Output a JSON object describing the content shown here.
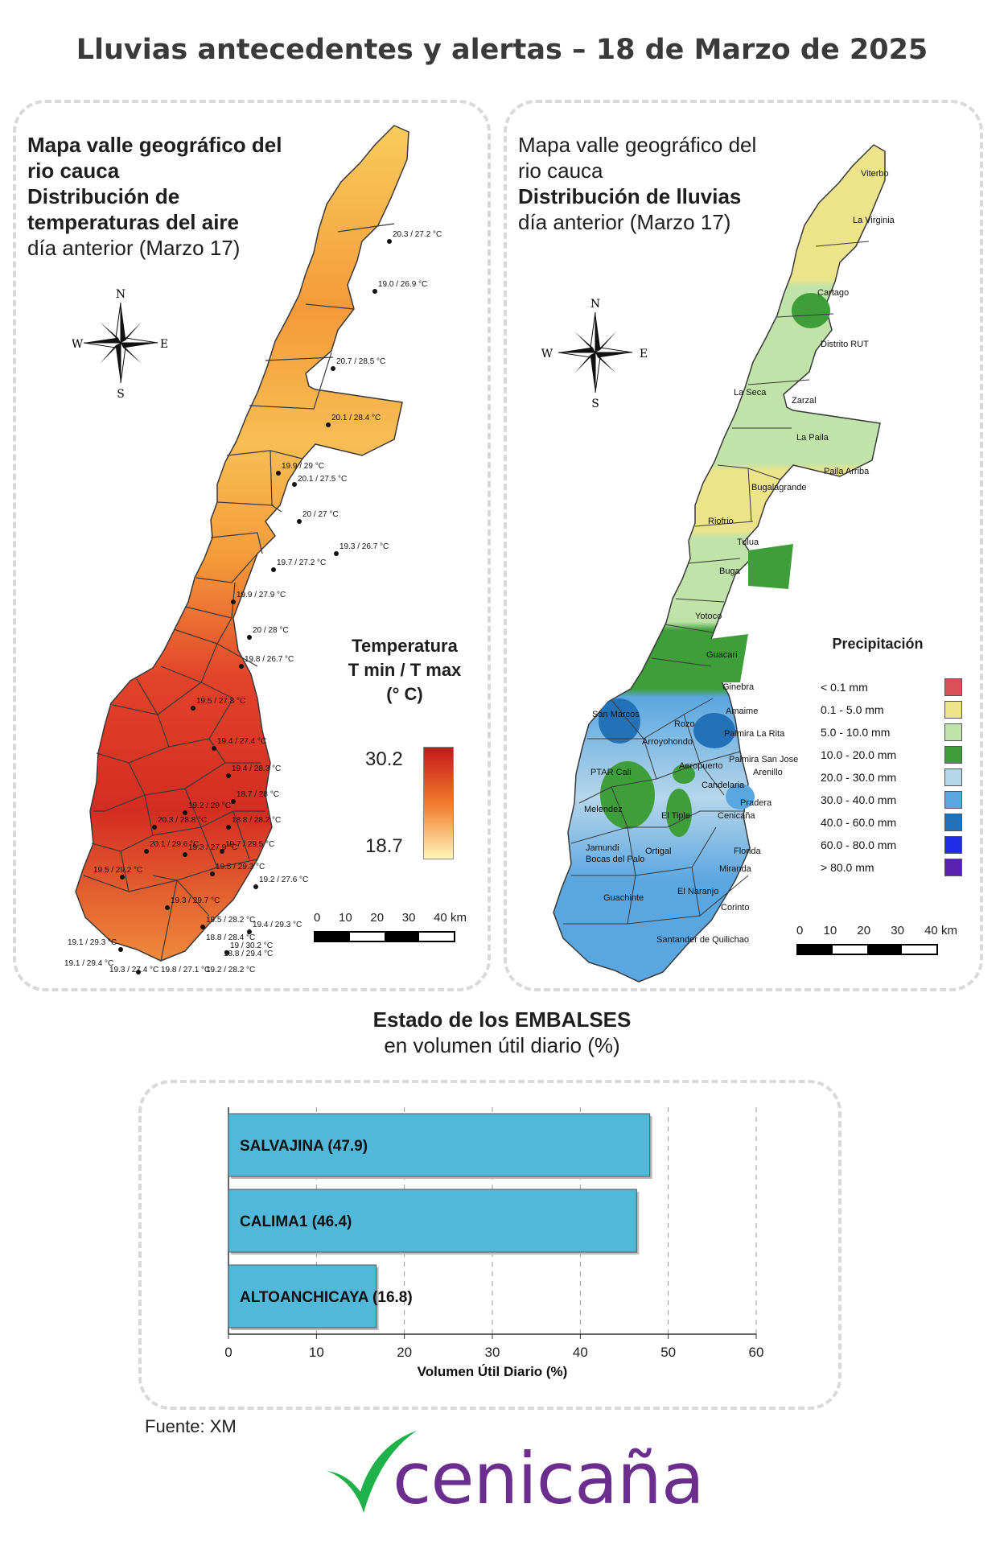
{
  "title": "Lluvias antecedentes y alertas – 18 de Marzo de 2025",
  "temp_map": {
    "heading_line1": "Mapa valle geográfico del",
    "heading_line2": "rio cauca",
    "heading_line3": "Distribución de",
    "heading_line4": "temperaturas del aire",
    "heading_line5": "día anterior (Marzo 17)",
    "legend_title_line1": "Temperatura",
    "legend_title_line2": "T min / T max",
    "legend_title_line3": "(° C)",
    "legend_max": "30.2",
    "legend_min": "18.7",
    "scale_labels": [
      "0",
      "10",
      "20",
      "30",
      "40 km"
    ],
    "stations": [
      "20.3 / 27.2 °C",
      "19.0 / 26.9 °C",
      "20.7 / 28.5 °C",
      "20.1 / 28.4 °C",
      "19.9 / 29 °C",
      "20.1 / 27.5 °C",
      "20 / 27 °C",
      "19.3 / 26.7 °C",
      "19.7 / 27.2 °C",
      "19.9 / 27.9 °C",
      "20 / 28 °C",
      "19.8 / 26.7 °C",
      "19.5 / 27.8 °C",
      "19.4 / 27.4 °C",
      "19.4 / 28.3 °C",
      "18.7 / 28 °C",
      "19.2 / 29 °C",
      "20.3 / 28.8 °C",
      "18.8 / 28.2 °C",
      "20.1 / 29.6 °C",
      "19.3 / 27.9 °C",
      "19.7 / 29.5 °C",
      "19.5 / 29.3 °C",
      "19.5 / 29.2 °C",
      "19.2 / 27.6 °C",
      "19.3 / 29.7 °C",
      "19.5 / 28.2 °C",
      "19.4 / 29.3 °C",
      "19 / 30.2 °C",
      "19.1 / 29.3 °C",
      "19.1 / 29.4 °C",
      "18.8 / 28.4 °C",
      "18.8 / 29.4 °C",
      "19.3 / 27.4 °C",
      "19.2 / 28.2 °C",
      "19.8 / 27.1 °C"
    ],
    "colors": {
      "max": "#c4161c",
      "mid": "#f07a2b",
      "min": "#fff5b8"
    }
  },
  "rain_map": {
    "heading_line1": "Mapa valle geográfico del",
    "heading_line2": "rio cauca",
    "heading_line3": "Distribución de lluvias",
    "heading_line4": "día anterior (Marzo 17)",
    "legend_title": "Precipitación",
    "scale_labels": [
      "0",
      "10",
      "20",
      "30",
      "40 km"
    ],
    "legend": [
      {
        "label": "< 0.1 mm",
        "color": "#d9505a"
      },
      {
        "label": "0.1 - 5.0 mm",
        "color": "#ede38a"
      },
      {
        "label": "5.0 - 10.0 mm",
        "color": "#bfe3a8"
      },
      {
        "label": "10.0 - 20.0 mm",
        "color": "#3e9e3a"
      },
      {
        "label": "20.0 - 30.0 mm",
        "color": "#b6d6ea"
      },
      {
        "label": "30.0 - 40.0 mm",
        "color": "#5aa6e0"
      },
      {
        "label": "40.0 - 60.0 mm",
        "color": "#2372b8"
      },
      {
        "label": "60.0 - 80.0 mm",
        "color": "#1e2ee8"
      },
      {
        "label": "> 80.0 mm",
        "color": "#5a22b0"
      }
    ],
    "places": [
      "Viterbo",
      "La Virginia",
      "Cartago",
      "Distrito RUT",
      "La Seca",
      "Zarzal",
      "La Paila",
      "Paila Arriba",
      "Bugalagrande",
      "Riofrio",
      "Tulua",
      "Buga",
      "Yotoco",
      "Guacari",
      "Ginebra",
      "San Marcos",
      "Rozo",
      "Amaime",
      "Palmira La Rita",
      "Arroyohondo",
      "Palmira San Jose",
      "Aeropuerto",
      "PTAR Cali",
      "Arenillo",
      "Candelaria",
      "Pradera",
      "Melendez",
      "El Tiple",
      "Cenicaña",
      "Jamundi",
      "Bocas del Palo",
      "Ortigal",
      "Florida",
      "Miranda",
      "Guachinte",
      "El Naranjo",
      "Corinto",
      "Santander de Quilichao"
    ]
  },
  "dams": {
    "heading_bold": "Estado de los EMBALSES",
    "heading_normal": "en volumen útil diario (%)",
    "chart_data": {
      "type": "bar",
      "orientation": "horizontal",
      "categories": [
        "SALVAJINA",
        "CALIMA1",
        "ALTOANCHICAYA"
      ],
      "bar_labels": [
        "SALVAJINA (47.9)",
        "CALIMA1 (46.4)",
        "ALTOANCHICAYA (16.8)"
      ],
      "values": [
        47.9,
        46.4,
        16.8
      ],
      "xlim": [
        0,
        60
      ],
      "xticks": [
        "0",
        "10",
        "20",
        "30",
        "40",
        "50",
        "60"
      ],
      "xlabel": "Volumen Útil Diario (%)",
      "grid": true,
      "bar_color": "#52b8d9"
    }
  },
  "source": "Fuente: XM",
  "logo_text": "cenicaña",
  "logo_colors": {
    "check": "#1fb24a",
    "text": "#6b2e8e"
  }
}
